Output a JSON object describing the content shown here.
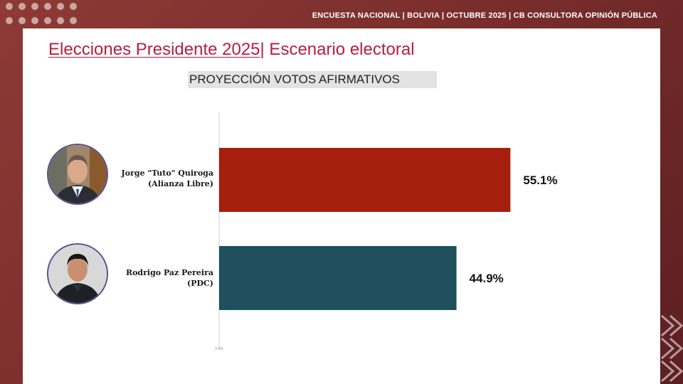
{
  "header": {
    "text": "ENCUESTA NACIONAL  |  BOLIVIA | OCTUBRE 2025 | CB CONSULTORA OPINIÓN PÚBLICA"
  },
  "title": {
    "part1": "Elecciones Presidente 2025",
    "separator": "|",
    "part2": " Escenario electoral"
  },
  "subtitle": "PROYECCIÓN VOTOS AFIRMATIVOS",
  "candidates": [
    {
      "name_line1": "Jorge \"Tuto\" Quiroga",
      "name_line2": "(Alianza Libre)"
    },
    {
      "name_line1": "Rodrigo Paz Pereira",
      "name_line2": "(PDC)"
    }
  ],
  "colors": {
    "title": "#b51f3f",
    "bar1": "#a61f0c",
    "bar2": "#1f505c"
  },
  "chart_data": {
    "type": "bar",
    "orientation": "horizontal",
    "categories": [
      "Jorge \"Tuto\" Quiroga (Alianza Libre)",
      "Rodrigo Paz Pereira (PDC)"
    ],
    "values": [
      55.1,
      44.9
    ],
    "value_labels": [
      "55.1%",
      "44.9%"
    ],
    "bar_colors": [
      "#a61f0c",
      "#1f505c"
    ],
    "x_tick_label": "0.0%",
    "xlim": [
      0,
      100
    ],
    "grid": false,
    "legend": "none"
  }
}
